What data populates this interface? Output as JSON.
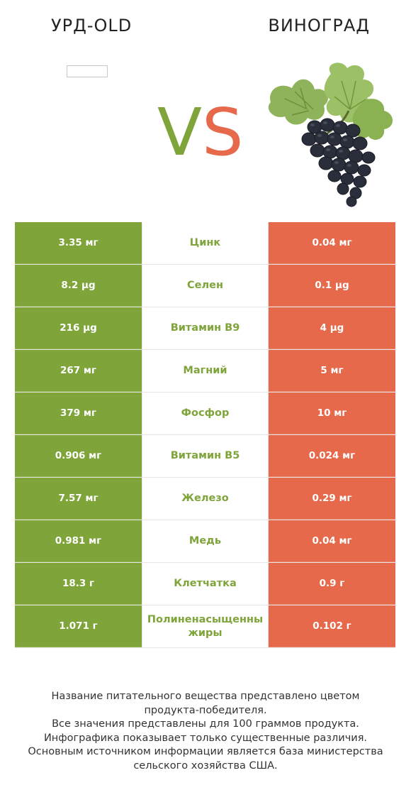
{
  "header": {
    "left_title": "УРД-OLD",
    "right_title": "ВИНОГРАД",
    "vs_v": "V",
    "vs_s": "S"
  },
  "colors": {
    "winner_left": "#7ea43a",
    "winner_right": "#e5694a"
  },
  "rows": [
    {
      "left": "3.35 мг",
      "nutrient": "Цинк",
      "right": "0.04 мг"
    },
    {
      "left": "8.2 µg",
      "nutrient": "Селен",
      "right": "0.1 µg"
    },
    {
      "left": "216 µg",
      "nutrient": "Витамин B9",
      "right": "4 µg"
    },
    {
      "left": "267 мг",
      "nutrient": "Магний",
      "right": "5 мг"
    },
    {
      "left": "379 мг",
      "nutrient": "Фосфор",
      "right": "10 мг"
    },
    {
      "left": "0.906 мг",
      "nutrient": "Витамин B5",
      "right": "0.024 мг"
    },
    {
      "left": "7.57 мг",
      "nutrient": "Железо",
      "right": "0.29 мг"
    },
    {
      "left": "0.981 мг",
      "nutrient": "Медь",
      "right": "0.04 мг"
    },
    {
      "left": "18.3 г",
      "nutrient": "Клетчатка",
      "right": "0.9 г"
    },
    {
      "left": "1.071 г",
      "nutrient": "Полиненасыщенны жиры",
      "right": "0.102 г"
    }
  ],
  "footer": {
    "lines": [
      "Название питательного вещества представлено цветом",
      "продукта-победителя.",
      "Все значения представлены для 100 граммов продукта.",
      "Инфографика показывает только существенные различия.",
      "Основным источником информации является база министерства",
      "сельского хозяйства США."
    ]
  }
}
